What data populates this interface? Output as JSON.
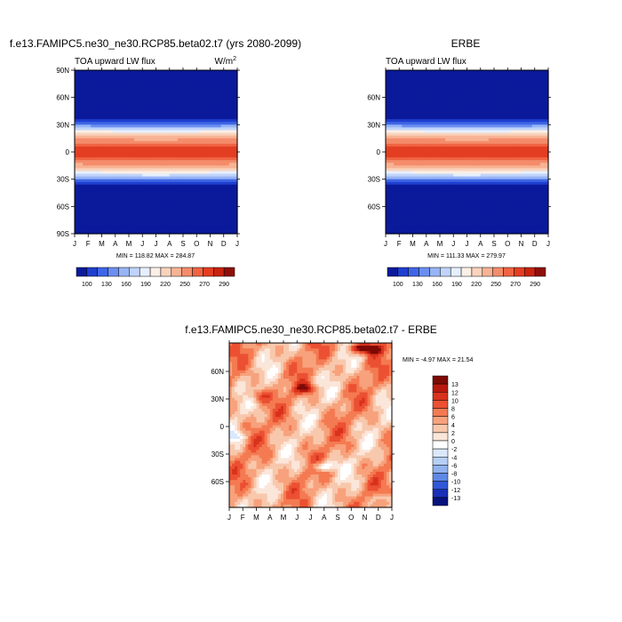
{
  "chart_data": [
    {
      "type": "heatmap",
      "title": "f.e13.FAMIPC5.ne30_ne30.RCP85.beta02.t7 (yrs 2080-2099)",
      "subtitle_left": "TOA upward LW flux",
      "units_prefix": "W/m",
      "units_exp": "2",
      "x_ticks": [
        "J",
        "F",
        "M",
        "A",
        "M",
        "J",
        "J",
        "A",
        "S",
        "O",
        "N",
        "D",
        "J"
      ],
      "y_ticks": [
        "90N",
        "60N",
        "30N",
        "0",
        "30S",
        "60S",
        "90S"
      ],
      "stats": "MIN = 118.82  MAX = 284.87",
      "colorbar": {
        "labels": [
          "100",
          "130",
          "160",
          "190",
          "220",
          "250",
          "270",
          "290"
        ],
        "colors": [
          "#0a1a9b",
          "#1f3fcf",
          "#3f66e6",
          "#6a8ff0",
          "#97b4f6",
          "#c0d4fb",
          "#e6efff",
          "#fbefe6",
          "#f9d3bc",
          "#f7b394",
          "#f48c6a",
          "#ef6442",
          "#e33e22",
          "#c8240f",
          "#8f0f08"
        ]
      }
    },
    {
      "type": "heatmap",
      "title": "ERBE",
      "subtitle_left": "TOA upward LW flux",
      "x_ticks": [
        "J",
        "F",
        "M",
        "A",
        "M",
        "J",
        "J",
        "A",
        "S",
        "O",
        "N",
        "D",
        "J"
      ],
      "y_ticks": [
        "60N",
        "30N",
        "0",
        "30S",
        "60S"
      ],
      "stats": "MIN = 111.33  MAX = 279.97",
      "colorbar": {
        "labels": [
          "100",
          "130",
          "160",
          "190",
          "220",
          "250",
          "270",
          "290"
        ],
        "colors": [
          "#0a1a9b",
          "#1f3fcf",
          "#3f66e6",
          "#6a8ff0",
          "#97b4f6",
          "#c0d4fb",
          "#e6efff",
          "#fbefe6",
          "#f9d3bc",
          "#f7b394",
          "#f48c6a",
          "#ef6442",
          "#e33e22",
          "#c8240f",
          "#8f0f08"
        ]
      }
    },
    {
      "type": "heatmap",
      "title": "f.e13.FAMIPC5.ne30_ne30.RCP85.beta02.t7 - ERBE",
      "x_ticks": [
        "J",
        "F",
        "M",
        "A",
        "M",
        "J",
        "J",
        "A",
        "S",
        "O",
        "N",
        "D",
        "J"
      ],
      "y_ticks": [
        "60N",
        "30N",
        "0",
        "30S",
        "60S"
      ],
      "stats": "MIN =  -4.97 MAX =  21.54",
      "colorbar": {
        "labels": [
          "13",
          "12",
          "10",
          "8",
          "6",
          "4",
          "2",
          "0",
          "-2",
          "-4",
          "-6",
          "-8",
          "-10",
          "-12",
          "-13"
        ],
        "colors": [
          "#7d0a05",
          "#b8190e",
          "#d8321c",
          "#ec5032",
          "#f47a52",
          "#f7a27c",
          "#f8c8ad",
          "#fbe6da",
          "#ffffff",
          "#dbe8fb",
          "#b6cff5",
          "#8fb2ee",
          "#5f88e6",
          "#3158d8",
          "#1a2fb8",
          "#08127d"
        ]
      }
    }
  ]
}
